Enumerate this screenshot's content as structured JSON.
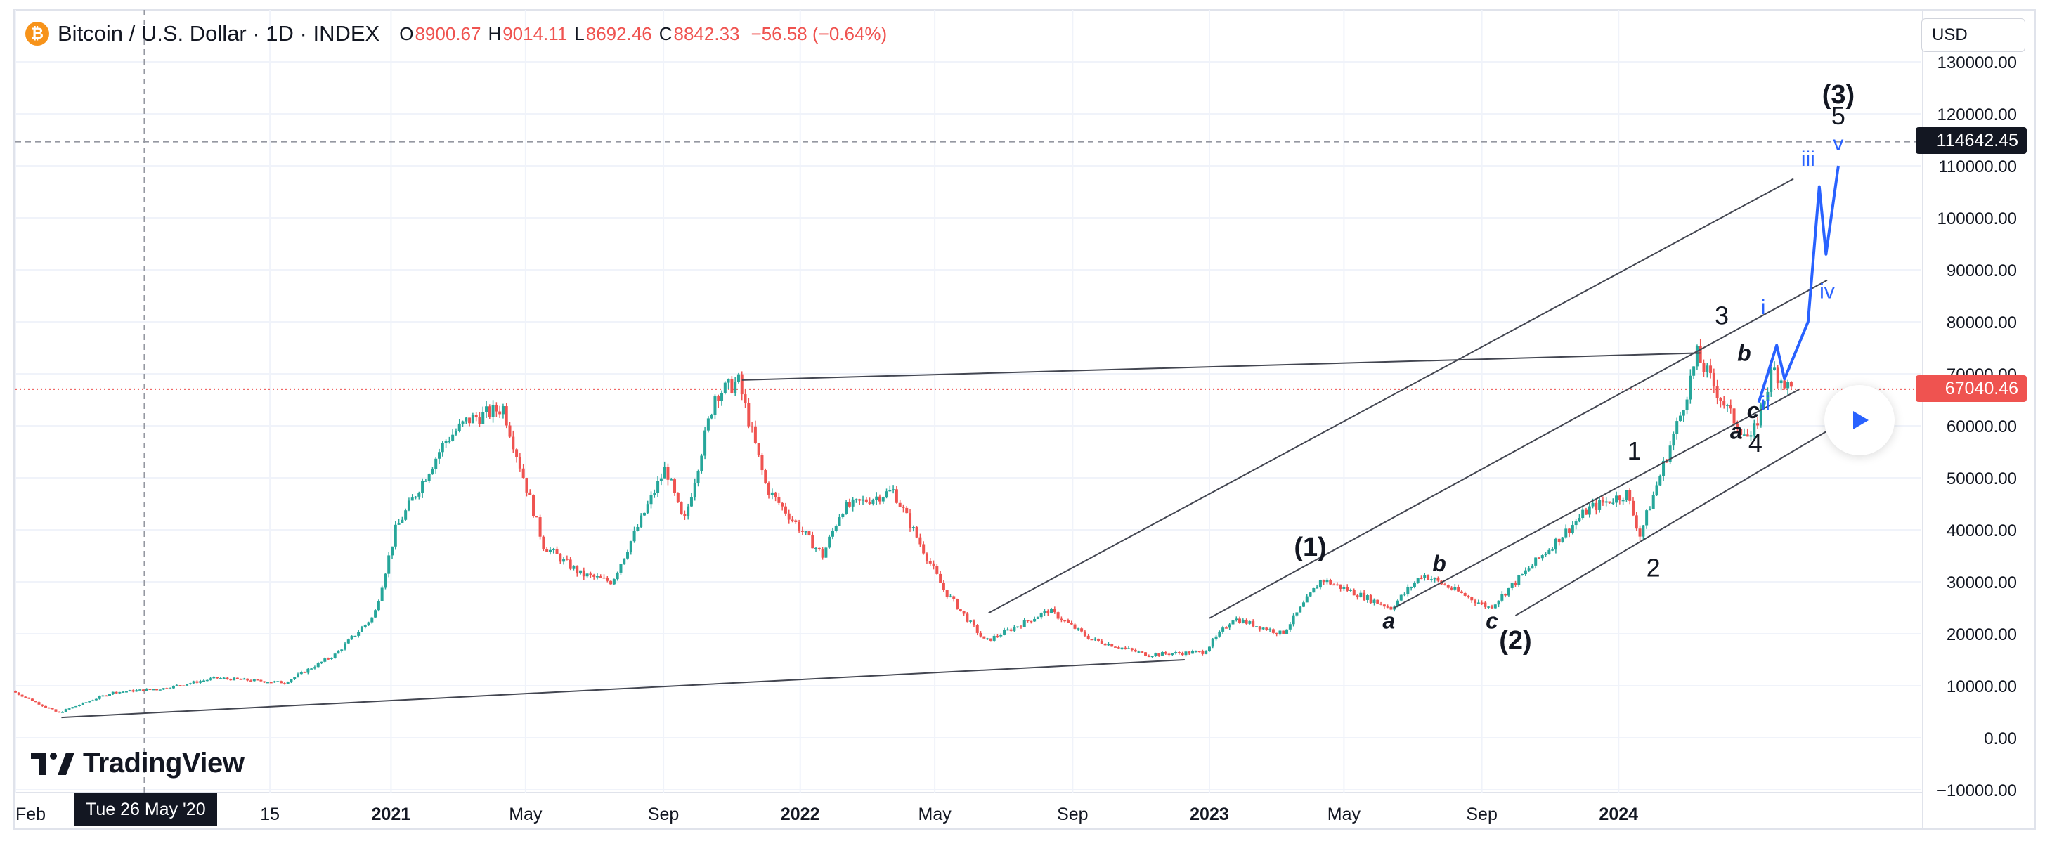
{
  "header": {
    "coin_icon_glyph": "₿",
    "symbol_title": "Bitcoin / U.S. Dollar · 1D · INDEX",
    "ohlc": {
      "o_label": "O",
      "o_value": "8900.67",
      "h_label": "H",
      "h_value": "9014.11",
      "l_label": "L",
      "l_value": "8692.46",
      "c_label": "C",
      "c_value": "8842.33",
      "change": "−56.58 (−0.64%)"
    }
  },
  "currency_select": {
    "value": "USD"
  },
  "crosshair": {
    "price_label": "114642.45",
    "date_label": "Tue 26 May '20",
    "price": 114642.45,
    "date": "2020-05-26"
  },
  "last_price": {
    "label": "67040.46",
    "price": 67040.46
  },
  "logo": {
    "text": "TradingView"
  },
  "play_icon": "play-icon",
  "colors": {
    "up": "#26a69a",
    "down": "#ef5350",
    "wave": "#2962ff",
    "line": "#434651",
    "grid": "#f0f3fa",
    "crosshair": "#9598a1"
  },
  "chart_data": {
    "type": "candlestick",
    "title": "",
    "xlabel": "",
    "ylabel": "",
    "ylim": [
      -10000,
      130000
    ],
    "y_ticks": [
      "130000.00",
      "120000.00",
      "110000.00",
      "100000.00",
      "90000.00",
      "80000.00",
      "70000.00",
      "60000.00",
      "50000.00",
      "40000.00",
      "30000.00",
      "20000.00",
      "10000.00",
      "0.00",
      "−10000.00"
    ],
    "y_tick_values": [
      130000,
      120000,
      110000,
      100000,
      90000,
      80000,
      70000,
      60000,
      50000,
      40000,
      30000,
      20000,
      10000,
      0,
      -10000
    ],
    "xlim": [
      "2020-02-01",
      "2024-12-15"
    ],
    "x_ticks": [
      {
        "label": "Feb",
        "date": "2020-02-01",
        "bold": false
      },
      {
        "label": "15",
        "date": "2020-09-15",
        "bold": false
      },
      {
        "label": "2021",
        "date": "2021-01-01",
        "bold": true
      },
      {
        "label": "May",
        "date": "2021-05-01",
        "bold": false
      },
      {
        "label": "Sep",
        "date": "2021-09-01",
        "bold": false
      },
      {
        "label": "2022",
        "date": "2022-01-01",
        "bold": true
      },
      {
        "label": "May",
        "date": "2022-05-01",
        "bold": false
      },
      {
        "label": "Sep",
        "date": "2022-09-01",
        "bold": false
      },
      {
        "label": "2023",
        "date": "2023-01-01",
        "bold": true
      },
      {
        "label": "May",
        "date": "2023-05-01",
        "bold": false
      },
      {
        "label": "Sep",
        "date": "2023-09-01",
        "bold": false
      },
      {
        "label": "2024",
        "date": "2024-01-01",
        "bold": true
      }
    ],
    "price_path": [
      [
        "2020-02-01",
        9000
      ],
      [
        "2020-03-13",
        4800
      ],
      [
        "2020-04-30",
        8700
      ],
      [
        "2020-06-15",
        9500
      ],
      [
        "2020-08-01",
        11500
      ],
      [
        "2020-10-01",
        10600
      ],
      [
        "2020-11-15",
        16000
      ],
      [
        "2020-12-20",
        23500
      ],
      [
        "2021-01-08",
        40000
      ],
      [
        "2021-02-21",
        57000
      ],
      [
        "2021-03-13",
        61000
      ],
      [
        "2021-04-14",
        63500
      ],
      [
        "2021-05-20",
        37000
      ],
      [
        "2021-06-22",
        31500
      ],
      [
        "2021-07-20",
        30000
      ],
      [
        "2021-09-06",
        52000
      ],
      [
        "2021-09-22",
        41000
      ],
      [
        "2021-10-20",
        66000
      ],
      [
        "2021-11-10",
        68500
      ],
      [
        "2021-12-05",
        48000
      ],
      [
        "2022-01-24",
        35000
      ],
      [
        "2022-02-10",
        44000
      ],
      [
        "2022-03-28",
        47500
      ],
      [
        "2022-05-12",
        28500
      ],
      [
        "2022-06-18",
        18500
      ],
      [
        "2022-08-14",
        24500
      ],
      [
        "2022-09-20",
        19000
      ],
      [
        "2022-11-09",
        16000
      ],
      [
        "2022-12-30",
        16500
      ],
      [
        "2023-01-25",
        23000
      ],
      [
        "2023-03-10",
        20000
      ],
      [
        "2023-04-14",
        30500
      ],
      [
        "2023-06-15",
        25000
      ],
      [
        "2023-07-13",
        31500
      ],
      [
        "2023-09-11",
        25000
      ],
      [
        "2023-10-25",
        34500
      ],
      [
        "2023-12-08",
        44000
      ],
      [
        "2024-01-11",
        47000
      ],
      [
        "2024-01-23",
        39000
      ],
      [
        "2024-02-28",
        62000
      ],
      [
        "2024-03-14",
        73500
      ],
      [
        "2024-04-13",
        62000
      ],
      [
        "2024-05-01",
        57000
      ],
      [
        "2024-05-21",
        71000
      ],
      [
        "2024-06-05",
        67040
      ]
    ],
    "trendlines": [
      {
        "from": [
          "2020-03-13",
          3900
        ],
        "to": [
          "2022-12-10",
          15000
        ]
      },
      {
        "from": [
          "2021-11-10",
          68800
        ],
        "to": [
          "2024-03-14",
          74000
        ]
      },
      {
        "from": [
          "2022-06-18",
          24000
        ],
        "to": [
          "2024-06-05",
          107500
        ]
      },
      {
        "from": [
          "2023-01-01",
          23000
        ],
        "to": [
          "2024-07-05",
          88000
        ]
      },
      {
        "from": [
          "2023-06-15",
          25000
        ],
        "to": [
          "2024-06-10",
          67000
        ]
      },
      {
        "from": [
          "2023-10-01",
          23500
        ],
        "to": [
          "2024-07-05",
          59000
        ]
      }
    ],
    "wave_projection": [
      [
        "2024-05-05",
        64500
      ],
      [
        "2024-05-21",
        75500
      ],
      [
        "2024-05-28",
        69000
      ],
      [
        "2024-06-18",
        80000
      ],
      [
        "2024-06-28",
        106000
      ],
      [
        "2024-07-04",
        93000
      ],
      [
        "2024-07-15",
        110000
      ]
    ],
    "wave_labels": [
      {
        "text": "(1)",
        "date": "2023-04-01",
        "price": 35000,
        "style": "bold-black"
      },
      {
        "text": "(2)",
        "date": "2023-10-01",
        "price": 17000,
        "style": "bold-black"
      },
      {
        "text": "(3)",
        "date": "2024-07-15",
        "price": 122000,
        "style": "bold-black"
      },
      {
        "text": "5",
        "date": "2024-07-15",
        "price": 118000,
        "style": "black"
      },
      {
        "text": "1",
        "date": "2024-01-15",
        "price": 53500,
        "style": "black"
      },
      {
        "text": "2",
        "date": "2024-02-01",
        "price": 31000,
        "style": "black"
      },
      {
        "text": "3",
        "date": "2024-04-02",
        "price": 79500,
        "style": "black"
      },
      {
        "text": "4",
        "date": "2024-05-02",
        "price": 55000,
        "style": "black"
      },
      {
        "text": "a",
        "date": "2023-06-10",
        "price": 21000,
        "style": "italic-black"
      },
      {
        "text": "b",
        "date": "2023-07-25",
        "price": 32000,
        "style": "italic-black"
      },
      {
        "text": "c",
        "date": "2023-09-10",
        "price": 21000,
        "style": "italic-black"
      },
      {
        "text": "a",
        "date": "2024-04-15",
        "price": 57500,
        "style": "italic-black"
      },
      {
        "text": "b",
        "date": "2024-04-22",
        "price": 72500,
        "style": "italic-black"
      },
      {
        "text": "c",
        "date": "2024-04-30",
        "price": 61500,
        "style": "italic-black"
      },
      {
        "text": "i",
        "date": "2024-05-09",
        "price": 81500,
        "style": "blue"
      },
      {
        "text": "ii",
        "date": "2024-05-11",
        "price": 63000,
        "style": "blue"
      },
      {
        "text": "iii",
        "date": "2024-06-18",
        "price": 110000,
        "style": "blue"
      },
      {
        "text": "iv",
        "date": "2024-07-05",
        "price": 84500,
        "style": "blue"
      },
      {
        "text": "v",
        "date": "2024-07-15",
        "price": 113000,
        "style": "blue"
      }
    ]
  }
}
